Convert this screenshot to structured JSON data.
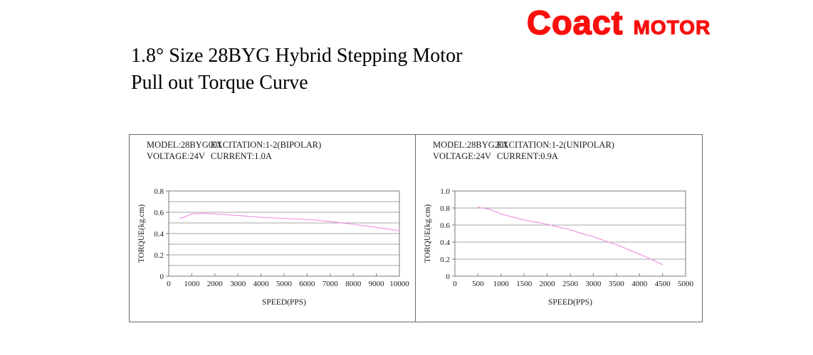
{
  "logo": {
    "primary": "Coact",
    "secondary": "MOTOR",
    "color": "#fa0f0c"
  },
  "title": {
    "line1": "1.8° Size 28BYG Hybrid Stepping Motor",
    "line2": "Pull out Torque Curve"
  },
  "panels": [
    {
      "header": {
        "model": "MODEL:28BYG001",
        "excitation": "EXCITATION:1-2(BIPOLAR)",
        "voltage": "VOLTAGE:24V",
        "current": "CURRENT:1.0A"
      }
    },
    {
      "header": {
        "model": "MODEL:28BYG201",
        "excitation": "EXCITATION:1-2(UNIPOLAR)",
        "voltage": "VOLTAGE:24V",
        "current": "CURRENT:0.9A"
      }
    }
  ],
  "chart_data": [
    {
      "type": "line",
      "title": "",
      "xlabel": "SPEED(PPS)",
      "ylabel": "TORQUE(kg.cm)",
      "xlim": [
        0,
        10000
      ],
      "ylim": [
        0,
        0.8
      ],
      "xticks": [
        0,
        1000,
        2000,
        3000,
        4000,
        5000,
        6000,
        7000,
        8000,
        9000,
        10000
      ],
      "yticks": [
        [
          0,
          "0"
        ],
        [
          0.2,
          "0.2"
        ],
        [
          0.4,
          "0.4"
        ],
        [
          0.6,
          "0.6"
        ],
        [
          0.8,
          "0.8"
        ]
      ],
      "grid_y_step": 0.1,
      "grid": true,
      "legend": false,
      "colors": {
        "line": "#ee94e4",
        "grid": "#a6a6a6",
        "axis": "#777777",
        "text": "#1a1a1a"
      },
      "series": [
        {
          "name": "pull-out-torque",
          "points": [
            [
              500,
              0.54
            ],
            [
              1000,
              0.585
            ],
            [
              1500,
              0.59
            ],
            [
              2000,
              0.585
            ],
            [
              2500,
              0.578
            ],
            [
              3000,
              0.57
            ],
            [
              3500,
              0.562
            ],
            [
              4000,
              0.552
            ],
            [
              4500,
              0.548
            ],
            [
              5000,
              0.542
            ],
            [
              5500,
              0.538
            ],
            [
              6000,
              0.532
            ],
            [
              6500,
              0.525
            ],
            [
              7000,
              0.513
            ],
            [
              7500,
              0.5
            ],
            [
              8000,
              0.488
            ],
            [
              8500,
              0.472
            ],
            [
              9000,
              0.458
            ],
            [
              9500,
              0.443
            ],
            [
              10000,
              0.428
            ]
          ]
        }
      ]
    },
    {
      "type": "line",
      "title": "",
      "xlabel": "SPEED(PPS)",
      "ylabel": "TORQUE(kg.cm)",
      "xlim": [
        0,
        5000
      ],
      "ylim": [
        0,
        1.0
      ],
      "xticks": [
        0,
        500,
        1000,
        1500,
        2000,
        2500,
        3000,
        3500,
        4000,
        4500,
        5000
      ],
      "yticks": [
        [
          0,
          "0"
        ],
        [
          0.2,
          "0.2"
        ],
        [
          0.4,
          "0.4"
        ],
        [
          0.6,
          "0.6"
        ],
        [
          0.8,
          "0.8"
        ],
        [
          1.0,
          "1.0"
        ]
      ],
      "grid_y_step": 0.2,
      "grid": true,
      "legend": false,
      "colors": {
        "line": "#ee94e4",
        "grid": "#a6a6a6",
        "axis": "#777777",
        "text": "#1a1a1a"
      },
      "series": [
        {
          "name": "pull-out-torque",
          "points": [
            [
              500,
              0.81
            ],
            [
              750,
              0.785
            ],
            [
              1000,
              0.73
            ],
            [
              1250,
              0.695
            ],
            [
              1500,
              0.66
            ],
            [
              1750,
              0.635
            ],
            [
              2000,
              0.61
            ],
            [
              2250,
              0.575
            ],
            [
              2500,
              0.545
            ],
            [
              2750,
              0.5
            ],
            [
              3000,
              0.465
            ],
            [
              3250,
              0.415
            ],
            [
              3500,
              0.37
            ],
            [
              3750,
              0.315
            ],
            [
              4000,
              0.26
            ],
            [
              4250,
              0.2
            ],
            [
              4500,
              0.135
            ]
          ]
        }
      ]
    }
  ]
}
